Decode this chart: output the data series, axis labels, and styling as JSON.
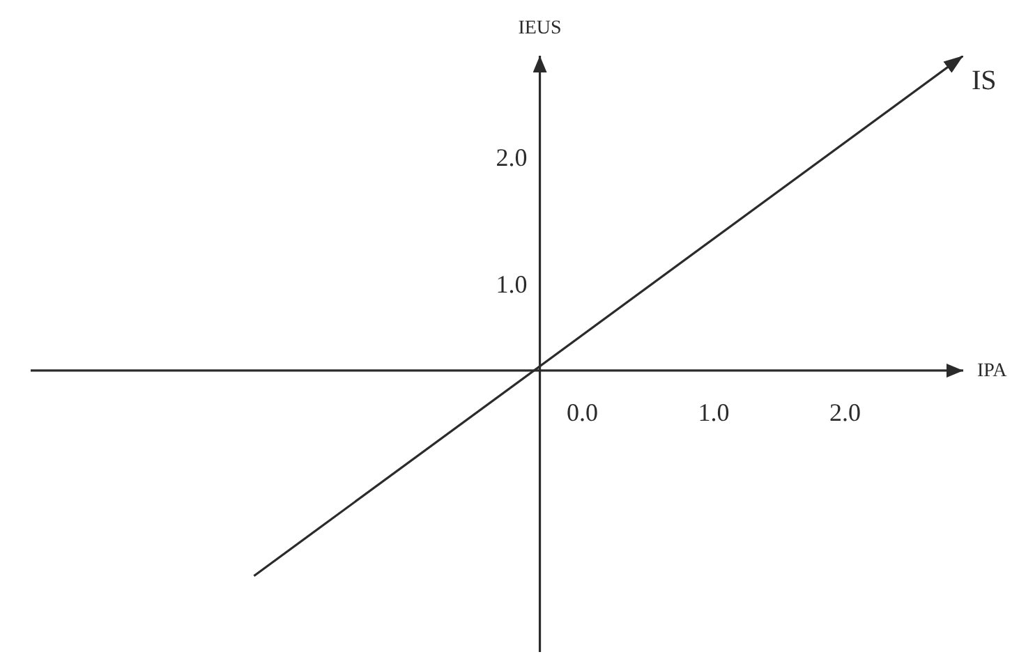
{
  "chart_data": {
    "type": "line",
    "xlabel": "IPA",
    "ylabel": "IEUS",
    "x": [
      -2.5,
      2.9
    ],
    "series": [
      {
        "name": "IS",
        "color": "#2b2b2b",
        "values": [
          -1.3,
          2.8
        ]
      }
    ],
    "xlim": [
      -4.2,
      2.9
    ],
    "xticks": [
      {
        "value": 0,
        "label": "0.0"
      },
      {
        "value": 1,
        "label": "1.0"
      },
      {
        "value": 2,
        "label": "2.0"
      }
    ],
    "ylim": [
      -1.9,
      2.8
    ],
    "yticks": [
      {
        "value": 1,
        "label": "1.0"
      },
      {
        "value": 2,
        "label": "2.0"
      }
    ],
    "line_style": "solid"
  }
}
